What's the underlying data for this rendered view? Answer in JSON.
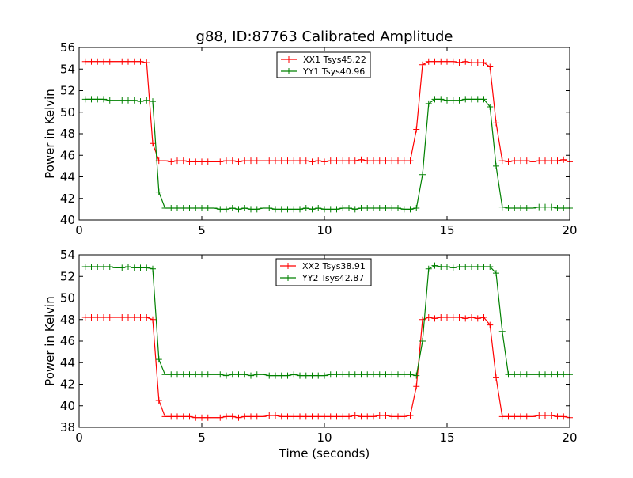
{
  "figure": {
    "title": "g88, ID:87763 Calibrated Amplitude",
    "xlabel": "Time (seconds)"
  },
  "chart_data": [
    {
      "type": "line",
      "ylabel": "Power in Kelvin",
      "xlim": [
        0,
        20
      ],
      "ylim": [
        40,
        56
      ],
      "xticks": [
        0,
        5,
        10,
        15,
        20
      ],
      "yticks": [
        40,
        42,
        44,
        46,
        48,
        50,
        52,
        54,
        56
      ],
      "legend_position": "top-center",
      "grid": false,
      "series": [
        {
          "name": "XX1 Tsys45.22",
          "color": "#ff0000",
          "x": [
            0.25,
            0.5,
            0.75,
            1.0,
            1.25,
            1.5,
            1.75,
            2.0,
            2.25,
            2.5,
            2.75,
            3.0,
            3.25,
            3.5,
            3.75,
            4.0,
            4.25,
            4.5,
            4.75,
            5.0,
            5.25,
            5.5,
            5.75,
            6.0,
            6.25,
            6.5,
            6.75,
            7.0,
            7.25,
            7.5,
            7.75,
            8.0,
            8.25,
            8.5,
            8.75,
            9.0,
            9.25,
            9.5,
            9.75,
            10.0,
            10.25,
            10.5,
            10.75,
            11.0,
            11.25,
            11.5,
            11.75,
            12.0,
            12.25,
            12.5,
            12.75,
            13.0,
            13.25,
            13.5,
            13.75,
            14.0,
            14.25,
            14.5,
            14.75,
            15.0,
            15.25,
            15.5,
            15.75,
            16.0,
            16.25,
            16.5,
            16.75,
            17.0,
            17.25,
            17.5,
            17.75,
            18.0,
            18.25,
            18.5,
            18.75,
            19.0,
            19.25,
            19.5,
            19.75,
            20.0
          ],
          "y": [
            54.7,
            54.7,
            54.7,
            54.7,
            54.7,
            54.7,
            54.7,
            54.7,
            54.7,
            54.7,
            54.6,
            47.1,
            45.5,
            45.5,
            45.4,
            45.5,
            45.5,
            45.4,
            45.4,
            45.4,
            45.4,
            45.4,
            45.4,
            45.5,
            45.5,
            45.4,
            45.5,
            45.5,
            45.5,
            45.5,
            45.5,
            45.5,
            45.5,
            45.5,
            45.5,
            45.5,
            45.5,
            45.4,
            45.5,
            45.4,
            45.5,
            45.5,
            45.5,
            45.5,
            45.5,
            45.6,
            45.5,
            45.5,
            45.5,
            45.5,
            45.5,
            45.5,
            45.5,
            45.5,
            48.4,
            54.4,
            54.7,
            54.7,
            54.7,
            54.7,
            54.7,
            54.6,
            54.7,
            54.6,
            54.6,
            54.6,
            54.2,
            49.0,
            45.5,
            45.4,
            45.5,
            45.5,
            45.5,
            45.4,
            45.5,
            45.5,
            45.5,
            45.5,
            45.6,
            45.4
          ]
        },
        {
          "name": "YY1 Tsys40.96",
          "color": "#008000",
          "x": [
            0.25,
            0.5,
            0.75,
            1.0,
            1.25,
            1.5,
            1.75,
            2.0,
            2.25,
            2.5,
            2.75,
            3.0,
            3.25,
            3.5,
            3.75,
            4.0,
            4.25,
            4.5,
            4.75,
            5.0,
            5.25,
            5.5,
            5.75,
            6.0,
            6.25,
            6.5,
            6.75,
            7.0,
            7.25,
            7.5,
            7.75,
            8.0,
            8.25,
            8.5,
            8.75,
            9.0,
            9.25,
            9.5,
            9.75,
            10.0,
            10.25,
            10.5,
            10.75,
            11.0,
            11.25,
            11.5,
            11.75,
            12.0,
            12.25,
            12.5,
            12.75,
            13.0,
            13.25,
            13.5,
            13.75,
            14.0,
            14.25,
            14.5,
            14.75,
            15.0,
            15.25,
            15.5,
            15.75,
            16.0,
            16.25,
            16.5,
            16.75,
            17.0,
            17.25,
            17.5,
            17.75,
            18.0,
            18.25,
            18.5,
            18.75,
            19.0,
            19.25,
            19.5,
            19.75,
            20.0
          ],
          "y": [
            51.2,
            51.2,
            51.2,
            51.2,
            51.1,
            51.1,
            51.1,
            51.1,
            51.1,
            51.0,
            51.1,
            51.0,
            42.6,
            41.1,
            41.1,
            41.1,
            41.1,
            41.1,
            41.1,
            41.1,
            41.1,
            41.1,
            41.0,
            41.0,
            41.1,
            41.0,
            41.1,
            41.0,
            41.0,
            41.1,
            41.1,
            41.0,
            41.0,
            41.0,
            41.0,
            41.0,
            41.1,
            41.0,
            41.1,
            41.0,
            41.0,
            41.0,
            41.1,
            41.1,
            41.0,
            41.1,
            41.1,
            41.1,
            41.1,
            41.1,
            41.1,
            41.1,
            41.0,
            41.0,
            41.1,
            44.2,
            50.8,
            51.2,
            51.2,
            51.1,
            51.1,
            51.1,
            51.2,
            51.2,
            51.2,
            51.2,
            50.5,
            45.0,
            41.2,
            41.1,
            41.1,
            41.1,
            41.1,
            41.1,
            41.2,
            41.2,
            41.2,
            41.1,
            41.1,
            41.1
          ]
        }
      ]
    },
    {
      "type": "line",
      "ylabel": "Power in Kelvin",
      "xlim": [
        0,
        20
      ],
      "ylim": [
        38,
        54
      ],
      "xticks": [
        0,
        5,
        10,
        15,
        20
      ],
      "yticks": [
        38,
        40,
        42,
        44,
        46,
        48,
        50,
        52,
        54
      ],
      "legend_position": "top-center",
      "grid": false,
      "series": [
        {
          "name": "XX2 Tsys38.91",
          "color": "#ff0000",
          "x": [
            0.25,
            0.5,
            0.75,
            1.0,
            1.25,
            1.5,
            1.75,
            2.0,
            2.25,
            2.5,
            2.75,
            3.0,
            3.25,
            3.5,
            3.75,
            4.0,
            4.25,
            4.5,
            4.75,
            5.0,
            5.25,
            5.5,
            5.75,
            6.0,
            6.25,
            6.5,
            6.75,
            7.0,
            7.25,
            7.5,
            7.75,
            8.0,
            8.25,
            8.5,
            8.75,
            9.0,
            9.25,
            9.5,
            9.75,
            10.0,
            10.25,
            10.5,
            10.75,
            11.0,
            11.25,
            11.5,
            11.75,
            12.0,
            12.25,
            12.5,
            12.75,
            13.0,
            13.25,
            13.5,
            13.75,
            14.0,
            14.25,
            14.5,
            14.75,
            15.0,
            15.25,
            15.5,
            15.75,
            16.0,
            16.25,
            16.5,
            16.75,
            17.0,
            17.25,
            17.5,
            17.75,
            18.0,
            18.25,
            18.5,
            18.75,
            19.0,
            19.25,
            19.5,
            19.75,
            20.0
          ],
          "y": [
            48.2,
            48.2,
            48.2,
            48.2,
            48.2,
            48.2,
            48.2,
            48.2,
            48.2,
            48.2,
            48.2,
            48.0,
            40.5,
            39.0,
            39.0,
            39.0,
            39.0,
            39.0,
            38.9,
            38.9,
            38.9,
            38.9,
            38.9,
            39.0,
            39.0,
            38.9,
            39.0,
            39.0,
            39.0,
            39.0,
            39.1,
            39.1,
            39.0,
            39.0,
            39.0,
            39.0,
            39.0,
            39.0,
            39.0,
            39.0,
            39.0,
            39.0,
            39.0,
            39.0,
            39.1,
            39.0,
            39.0,
            39.0,
            39.1,
            39.1,
            39.0,
            39.0,
            39.0,
            39.1,
            41.8,
            48.0,
            48.2,
            48.1,
            48.2,
            48.2,
            48.2,
            48.2,
            48.1,
            48.2,
            48.1,
            48.2,
            47.5,
            42.6,
            39.0,
            39.0,
            39.0,
            39.0,
            39.0,
            39.0,
            39.1,
            39.1,
            39.1,
            39.0,
            39.0,
            38.9
          ],
          "note": ""
        },
        {
          "name": "YY2 Tsys42.87",
          "color": "#008000",
          "x": [
            0.25,
            0.5,
            0.75,
            1.0,
            1.25,
            1.5,
            1.75,
            2.0,
            2.25,
            2.5,
            2.75,
            3.0,
            3.25,
            3.5,
            3.75,
            4.0,
            4.25,
            4.5,
            4.75,
            5.0,
            5.25,
            5.5,
            5.75,
            6.0,
            6.25,
            6.5,
            6.75,
            7.0,
            7.25,
            7.5,
            7.75,
            8.0,
            8.25,
            8.5,
            8.75,
            9.0,
            9.25,
            9.5,
            9.75,
            10.0,
            10.25,
            10.5,
            10.75,
            11.0,
            11.25,
            11.5,
            11.75,
            12.0,
            12.25,
            12.5,
            12.75,
            13.0,
            13.25,
            13.5,
            13.75,
            14.0,
            14.25,
            14.5,
            14.75,
            15.0,
            15.25,
            15.5,
            15.75,
            16.0,
            16.25,
            16.5,
            16.75,
            17.0,
            17.25,
            17.5,
            17.75,
            18.0,
            18.25,
            18.5,
            18.75,
            19.0,
            19.25,
            19.5,
            19.75,
            20.0
          ],
          "y": [
            52.9,
            52.9,
            52.9,
            52.9,
            52.9,
            52.8,
            52.8,
            52.9,
            52.8,
            52.8,
            52.8,
            52.7,
            44.3,
            42.9,
            42.9,
            42.9,
            42.9,
            42.9,
            42.9,
            42.9,
            42.9,
            42.9,
            42.9,
            42.8,
            42.9,
            42.9,
            42.9,
            42.8,
            42.9,
            42.9,
            42.8,
            42.8,
            42.8,
            42.8,
            42.9,
            42.8,
            42.8,
            42.8,
            42.8,
            42.8,
            42.9,
            42.9,
            42.9,
            42.9,
            42.9,
            42.9,
            42.9,
            42.9,
            42.9,
            42.9,
            42.9,
            42.9,
            42.9,
            42.9,
            42.8,
            46.0,
            52.7,
            53.0,
            52.9,
            52.9,
            52.8,
            52.9,
            52.9,
            52.9,
            52.9,
            52.9,
            52.9,
            52.3,
            46.9,
            42.9,
            42.9,
            42.9,
            42.9,
            42.9,
            42.9,
            42.9,
            42.9,
            42.9,
            42.9,
            42.9
          ]
        }
      ]
    }
  ]
}
